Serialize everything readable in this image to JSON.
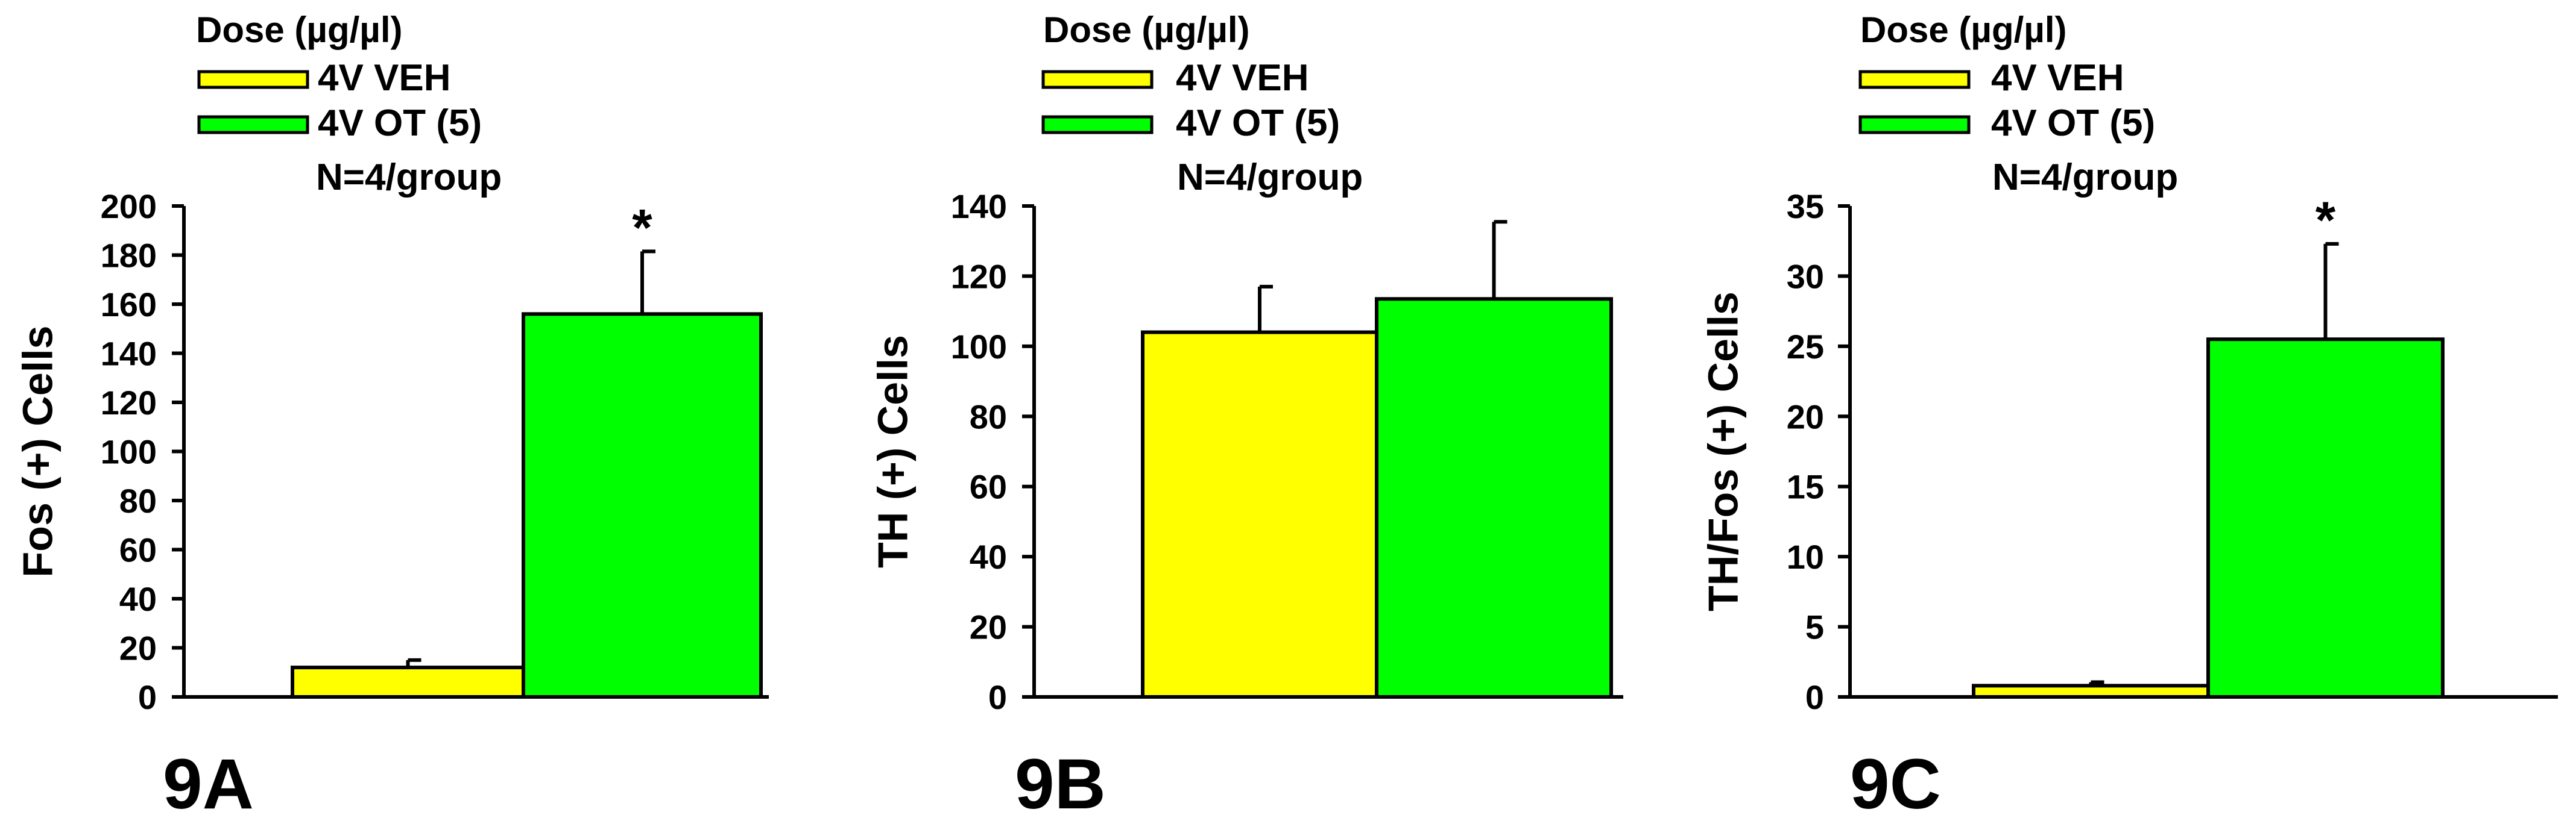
{
  "figure": {
    "colors": {
      "veh": "#ffff00",
      "ot": "#00ff00",
      "error_bar": "#000000",
      "axis": "#000000"
    }
  },
  "chart_data": [
    {
      "type": "bar",
      "panel_label": "9A",
      "ylabel": "Fos (+) Cells",
      "ylim": [
        0,
        200
      ],
      "yticks": [
        0,
        20,
        40,
        60,
        80,
        100,
        120,
        140,
        160,
        180,
        200
      ],
      "legend": {
        "title": "Dose (µg/µl)",
        "entries": [
          "4V VEH",
          "4V OT (5)"
        ],
        "note": "N=4/group"
      },
      "series": [
        {
          "name": "4V VEH",
          "value": 12,
          "error": 3,
          "color": "#ffff00"
        },
        {
          "name": "4V OT (5)",
          "value": 156,
          "error": 25.5,
          "color": "#00ff00",
          "significance": "*"
        }
      ]
    },
    {
      "type": "bar",
      "panel_label": "9B",
      "ylabel": "TH (+) Cells",
      "ylim": [
        0,
        140
      ],
      "yticks": [
        0,
        20,
        40,
        60,
        80,
        100,
        120,
        140
      ],
      "legend": {
        "title": "Dose (µg/µl)",
        "entries": [
          "4V VEH",
          "4V OT (5)"
        ],
        "note": "N=4/group"
      },
      "series": [
        {
          "name": "4V VEH",
          "value": 104,
          "error": 13,
          "color": "#ffff00"
        },
        {
          "name": "4V OT (5)",
          "value": 113.5,
          "error": 22,
          "color": "#00ff00"
        }
      ]
    },
    {
      "type": "bar",
      "panel_label": "9C",
      "ylabel": "TH/Fos (+) Cells",
      "ylim": [
        0,
        35
      ],
      "yticks": [
        0,
        5,
        10,
        15,
        20,
        25,
        30,
        35
      ],
      "legend": {
        "title": "Dose (µg/µl)",
        "entries": [
          "4V VEH",
          "4V OT (5)"
        ],
        "note": "N=4/group"
      },
      "series": [
        {
          "name": "4V VEH",
          "value": 0.8,
          "error": 0.25,
          "color": "#ffff00"
        },
        {
          "name": "4V OT (5)",
          "value": 25.5,
          "error": 6.8,
          "color": "#00ff00",
          "significance": "*"
        }
      ]
    }
  ]
}
